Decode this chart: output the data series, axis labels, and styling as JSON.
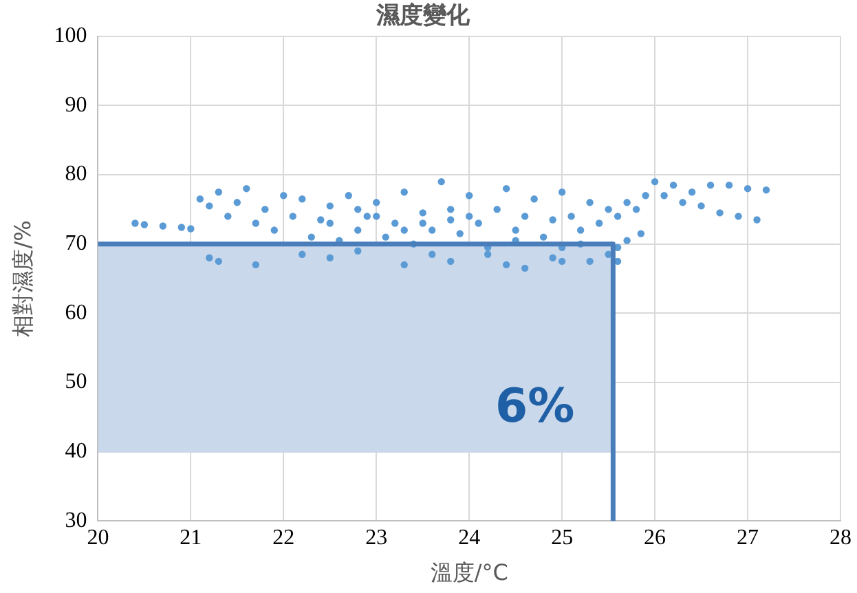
{
  "chart_data": {
    "type": "scatter",
    "title": "濕度變化",
    "xlabel": "溫度/°C",
    "ylabel": "相對濕度/%",
    "xlim": [
      20,
      28
    ],
    "xticks": [
      20,
      21,
      22,
      23,
      24,
      25,
      26,
      27,
      28
    ],
    "ylim": [
      30,
      100
    ],
    "yticks": [
      30,
      40,
      50,
      60,
      70,
      80,
      90,
      100
    ],
    "grid": true,
    "annotations": [
      "6%"
    ],
    "series": [
      {
        "type": "line",
        "color": "#4a7ebb",
        "marker": "none",
        "x": [
          20,
          25.55
        ],
        "values": [
          70,
          70
        ],
        "lower": [
          40,
          40
        ],
        "upper": [
          70,
          70
        ]
      },
      {
        "type": "scatter",
        "color": "#5b9bd5",
        "marker": "circle",
        "x": [
          20.4,
          20.5,
          20.7,
          20.9,
          21.0,
          21.1,
          21.2,
          21.3,
          21.4,
          21.5,
          21.6,
          21.7,
          21.8,
          21.9,
          22.0,
          22.1,
          22.2,
          22.3,
          22.4,
          22.5,
          22.6,
          22.7,
          22.8,
          22.9,
          23.0,
          23.1,
          23.2,
          23.3,
          23.4,
          23.5,
          23.6,
          23.7,
          23.8,
          23.9,
          24.0,
          24.1,
          24.2,
          24.3,
          24.4,
          24.5,
          24.6,
          24.7,
          24.8,
          24.9,
          25.0,
          25.1,
          25.2,
          25.3,
          25.4,
          25.5,
          25.6,
          25.7,
          25.8,
          25.9,
          26.0,
          26.1,
          26.2,
          26.3,
          26.4,
          26.5,
          26.6,
          26.8,
          27.0,
          27.2,
          26.7,
          26.9,
          27.1,
          25.7,
          25.85,
          25.6,
          25.5,
          21.3,
          21.7,
          22.2,
          22.8,
          23.3,
          23.8,
          24.2,
          24.6,
          25.0,
          25.3,
          25.6,
          21.2,
          22.5,
          23.6,
          24.9,
          24.4,
          22.5,
          23.0,
          23.5,
          24.0,
          22.8,
          23.3,
          23.8,
          24.5,
          25.2,
          25.0
        ],
        "values": [
          73,
          72.8,
          72.6,
          72.4,
          72.2,
          76.5,
          75.5,
          77.5,
          74,
          76,
          78,
          73,
          75,
          72,
          77,
          74,
          76.5,
          71,
          73.5,
          75.5,
          70.5,
          77,
          72,
          74,
          76,
          71,
          73,
          77.5,
          70,
          74.5,
          72,
          79,
          75,
          71.5,
          77,
          73,
          69.5,
          75,
          78,
          72,
          74,
          76.5,
          71,
          73.5,
          77.5,
          74,
          72,
          76,
          73,
          75,
          74,
          76,
          75,
          77,
          79,
          77,
          78.5,
          76,
          77.5,
          75.5,
          78.5,
          78.5,
          78,
          77.8,
          74.5,
          74,
          73.5,
          70.5,
          71.5,
          69.5,
          68.5,
          67.5,
          67,
          68.5,
          69,
          67,
          67.5,
          68.5,
          66.5,
          67.5,
          67.5,
          67.5,
          68,
          68,
          68.5,
          68,
          67,
          73,
          74,
          73,
          74,
          75,
          72,
          73.5,
          70.5,
          70,
          69.5
        ]
      },
      {
        "type": "line",
        "color": "#4a7ebb",
        "marker": "none",
        "x": [
          25.55,
          25.55
        ],
        "values": [
          70,
          30
        ]
      }
    ]
  }
}
